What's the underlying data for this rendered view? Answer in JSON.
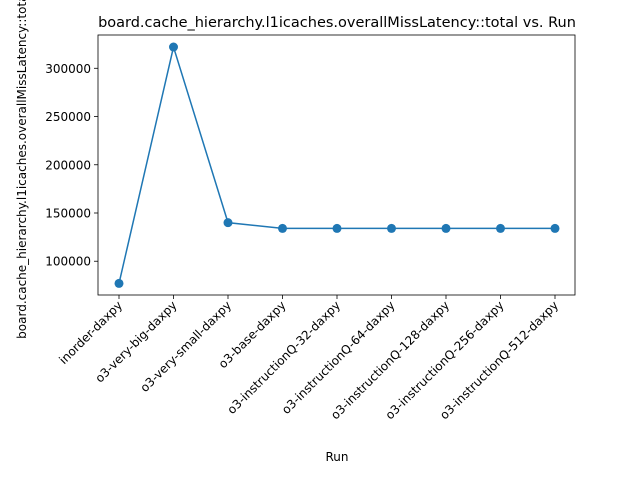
{
  "chart_data": {
    "type": "line",
    "title": "board.cache_hierarchy.l1icaches.overallMissLatency::total vs. Run",
    "xlabel": "Run",
    "ylabel": "board.cache_hierarchy.l1icaches.overallMissLatency::total",
    "categories": [
      "inorder-daxpy",
      "o3-very-big-daxpy",
      "o3-very-small-daxpy",
      "o3-base-daxpy",
      "o3-instructionQ-32-daxpy",
      "o3-instructionQ-64-daxpy",
      "o3-instructionQ-128-daxpy",
      "o3-instructionQ-256-daxpy",
      "o3-instructionQ-512-daxpy"
    ],
    "values": [
      77000,
      322000,
      140000,
      134000,
      134000,
      134000,
      134000,
      134000,
      134000
    ],
    "ylim": [
      65000,
      334500
    ],
    "yticks": [
      100000,
      150000,
      200000,
      250000,
      300000
    ],
    "grid": false,
    "legend": "none",
    "colors": {
      "series": "#1f77b4",
      "axes": "#000000"
    }
  }
}
